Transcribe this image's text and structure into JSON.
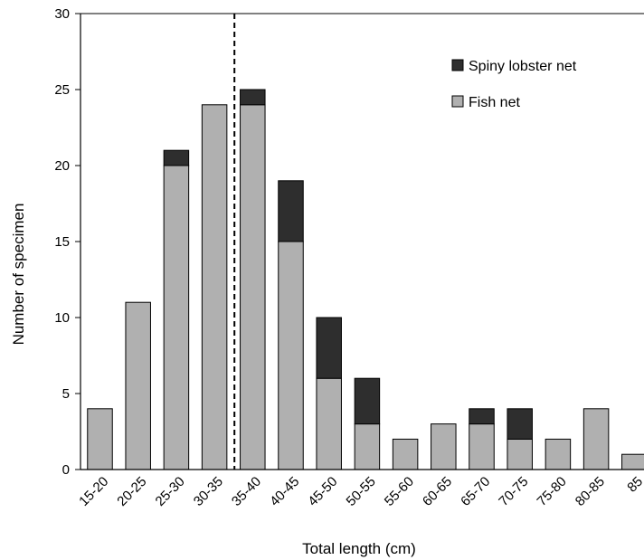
{
  "chart_data": {
    "type": "bar",
    "stacked": true,
    "categories": [
      "15-20",
      "20-25",
      "25-30",
      "30-35",
      "35-40",
      "40-45",
      "45-50",
      "50-55",
      "55-60",
      "60-65",
      "65-70",
      "70-75",
      "75-80",
      "80-85",
      "85"
    ],
    "series": [
      {
        "name": "Fish net",
        "color": "#b0b0b0",
        "values": [
          4,
          11,
          20,
          24,
          24,
          15,
          6,
          3,
          2,
          3,
          3,
          2,
          2,
          4,
          1
        ]
      },
      {
        "name": "Spiny lobster net",
        "color": "#2e2e2e",
        "values": [
          0,
          0,
          1,
          0,
          1,
          4,
          4,
          3,
          0,
          0,
          1,
          2,
          0,
          0,
          0
        ]
      }
    ],
    "xlabel": "Total length (cm)",
    "ylabel": "Number of specimen",
    "ylim": [
      0,
      30
    ],
    "yticks": [
      0,
      5,
      10,
      15,
      20,
      25,
      30
    ],
    "reference_line": {
      "style": "dashed",
      "between": [
        "30-35",
        "35-40"
      ]
    },
    "grid": false,
    "legend": {
      "position": "top-right",
      "order": [
        "Spiny lobster net",
        "Fish net"
      ]
    }
  }
}
